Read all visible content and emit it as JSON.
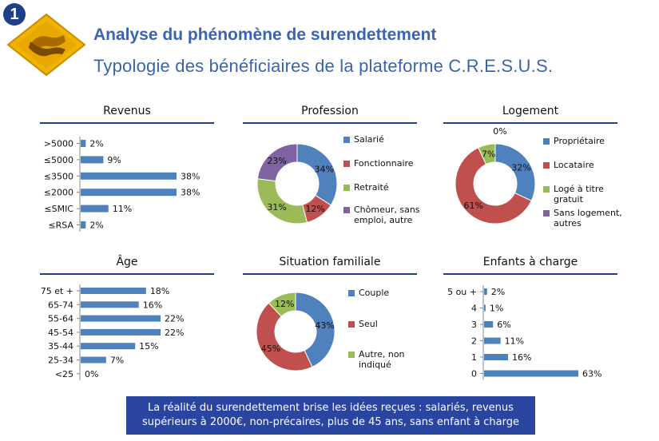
{
  "slide_number": "1",
  "title": "Analyse du phénomène de surendettement",
  "subtitle": "Typologie des bénéficiaires de la plateforme C.R.E.S.U.S.",
  "footer": "La réalité du surendettement brise les idées reçues : salariés, revenus supérieurs à 2000€, non-précaires, plus de 45 ans, sans enfant à charge",
  "colors": {
    "blue": "#4f81bd",
    "red": "#c0504d",
    "green": "#9bbb59",
    "purple": "#8064a2",
    "accent": "#1e3f8a",
    "title": "#3a64b0"
  },
  "chart_data": [
    {
      "id": "revenus",
      "type": "bar",
      "orientation": "horizontal",
      "title": "Revenus",
      "categories": [
        ">5000",
        "≤5000",
        "≤3500",
        "≤2000",
        "≤SMIC",
        "≤RSA"
      ],
      "values": [
        2,
        9,
        38,
        38,
        11,
        2
      ],
      "labels": [
        "2%",
        "9%",
        "38%",
        "38%",
        "11%",
        "2%"
      ]
    },
    {
      "id": "profession",
      "type": "pie",
      "donut": true,
      "title": "Profession",
      "categories": [
        "Salarié",
        "Fonctionnaire",
        "Retraité",
        "Chômeur, sans emploi, autre"
      ],
      "values": [
        34,
        12,
        31,
        23
      ],
      "labels": [
        "34%",
        "12%",
        "31%",
        "23%"
      ]
    },
    {
      "id": "logement",
      "type": "pie",
      "donut": true,
      "title": "Logement",
      "categories": [
        "Propriétaire",
        "Locataire",
        "Logé à titre gratuit",
        "Sans logement, autres"
      ],
      "values": [
        32,
        61,
        7,
        0
      ],
      "labels": [
        "32%",
        "61%",
        "7%",
        "0%"
      ]
    },
    {
      "id": "age",
      "type": "bar",
      "orientation": "horizontal",
      "title": "Âge",
      "categories": [
        "75 et +",
        "65-74",
        "55-64",
        "45-54",
        "35-44",
        "25-34",
        "<25"
      ],
      "values": [
        18,
        16,
        22,
        22,
        15,
        7,
        0
      ],
      "labels": [
        "18%",
        "16%",
        "22%",
        "22%",
        "15%",
        "7%",
        "0%"
      ]
    },
    {
      "id": "situation",
      "type": "pie",
      "donut": true,
      "title": "Situation familiale",
      "categories": [
        "Couple",
        "Seul",
        "Autre, non indiqué"
      ],
      "values": [
        43,
        45,
        12
      ],
      "labels": [
        "43%",
        "45%",
        "12%"
      ]
    },
    {
      "id": "enfants",
      "type": "bar",
      "orientation": "horizontal",
      "title": "Enfants à charge",
      "categories": [
        "5 ou +",
        "4",
        "3",
        "2",
        "1",
        "0"
      ],
      "values": [
        2,
        1,
        6,
        11,
        16,
        63
      ],
      "labels": [
        "2%",
        "1%",
        "6%",
        "11%",
        "16%",
        "63%"
      ]
    }
  ]
}
